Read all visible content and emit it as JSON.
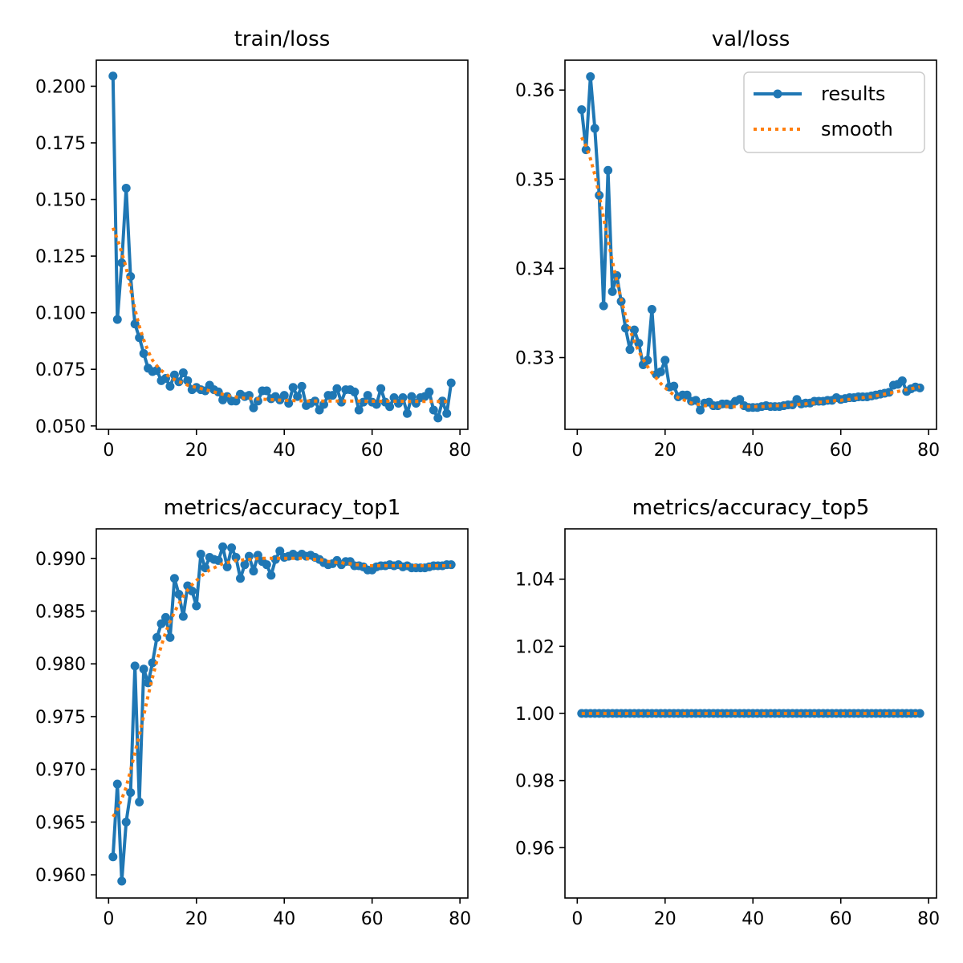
{
  "colors": {
    "results": "#1f77b4",
    "smooth": "#ff7f0e",
    "axes": "#000000",
    "background": "#ffffff"
  },
  "legend": {
    "placement": "upper-right",
    "shown_in": "val/loss",
    "entries": [
      "results",
      "smooth"
    ]
  },
  "chart_data": [
    {
      "type": "line",
      "title": "train/loss",
      "grid": false,
      "xlim": [
        -2.8,
        81.8
      ],
      "ylim": [
        0.0485,
        0.2115
      ],
      "xticks": [
        0,
        20,
        40,
        60,
        80
      ],
      "xtick_labels": [
        "0",
        "20",
        "40",
        "60",
        "80"
      ],
      "yticks": [
        0.05,
        0.075,
        0.1,
        0.125,
        0.15,
        0.175,
        0.2
      ],
      "ytick_labels": [
        "0.050",
        "0.075",
        "0.100",
        "0.125",
        "0.150",
        "0.175",
        "0.200"
      ],
      "x": [
        1,
        2,
        3,
        4,
        5,
        6,
        7,
        8,
        9,
        10,
        11,
        12,
        13,
        14,
        15,
        16,
        17,
        18,
        19,
        20,
        21,
        22,
        23,
        24,
        25,
        26,
        27,
        28,
        29,
        30,
        31,
        32,
        33,
        34,
        35,
        36,
        37,
        38,
        39,
        40,
        41,
        42,
        43,
        44,
        45,
        46,
        47,
        48,
        49,
        50,
        51,
        52,
        53,
        54,
        55,
        56,
        57,
        58,
        59,
        60,
        61,
        62,
        63,
        64,
        65,
        66,
        67,
        68,
        69,
        70,
        71,
        72,
        73,
        74,
        75,
        76,
        77,
        78
      ],
      "series": [
        {
          "name": "results",
          "style": "line-marker",
          "values": [
            0.2045,
            0.097,
            0.122,
            0.155,
            0.116,
            0.095,
            0.089,
            0.082,
            0.0755,
            0.074,
            0.0745,
            0.07,
            0.071,
            0.0675,
            0.0725,
            0.0695,
            0.0735,
            0.07,
            0.066,
            0.067,
            0.066,
            0.0655,
            0.068,
            0.066,
            0.065,
            0.0615,
            0.063,
            0.061,
            0.061,
            0.064,
            0.063,
            0.0635,
            0.058,
            0.061,
            0.0655,
            0.0655,
            0.062,
            0.063,
            0.0615,
            0.0635,
            0.06,
            0.067,
            0.063,
            0.0675,
            0.059,
            0.06,
            0.061,
            0.057,
            0.0595,
            0.0635,
            0.0635,
            0.0665,
            0.0605,
            0.066,
            0.066,
            0.065,
            0.057,
            0.0605,
            0.0635,
            0.0605,
            0.0595,
            0.0665,
            0.0605,
            0.0585,
            0.0625,
            0.06,
            0.0625,
            0.0555,
            0.063,
            0.06,
            0.0625,
            0.063,
            0.065,
            0.057,
            0.0535,
            0.061,
            0.0555,
            0.069
          ]
        },
        {
          "name": "smooth",
          "style": "dotted",
          "values": [
            0.1375,
            0.1325,
            0.1265,
            0.12,
            0.1105,
            0.1015,
            0.094,
            0.088,
            0.083,
            0.079,
            0.0765,
            0.0745,
            0.073,
            0.0715,
            0.0705,
            0.0695,
            0.069,
            0.068,
            0.0675,
            0.067,
            0.0665,
            0.066,
            0.0655,
            0.065,
            0.0645,
            0.064,
            0.0635,
            0.063,
            0.0628,
            0.0625,
            0.0623,
            0.0622,
            0.062,
            0.0619,
            0.0618,
            0.0617,
            0.0616,
            0.0615,
            0.0614,
            0.0613,
            0.0612,
            0.0612,
            0.0611,
            0.0611,
            0.061,
            0.061,
            0.061,
            0.061,
            0.061,
            0.061,
            0.061,
            0.061,
            0.061,
            0.061,
            0.061,
            0.061,
            0.061,
            0.0609,
            0.0609,
            0.0609,
            0.0609,
            0.0609,
            0.0609,
            0.0609,
            0.0609,
            0.0609,
            0.0609,
            0.0608,
            0.0608,
            0.0608,
            0.0608,
            0.0608,
            0.0608,
            0.0608,
            0.0608,
            0.0608,
            0.0608,
            0.0608
          ]
        }
      ]
    },
    {
      "type": "line",
      "title": "val/loss",
      "grid": false,
      "xlim": [
        -2.8,
        81.8
      ],
      "ylim": [
        0.32195,
        0.36335
      ],
      "xticks": [
        0,
        20,
        40,
        60,
        80
      ],
      "xtick_labels": [
        "0",
        "20",
        "40",
        "60",
        "80"
      ],
      "yticks": [
        0.33,
        0.34,
        0.35,
        0.36
      ],
      "ytick_labels": [
        "0.33",
        "0.34",
        "0.35",
        "0.36"
      ],
      "x": [
        1,
        2,
        3,
        4,
        5,
        6,
        7,
        8,
        9,
        10,
        11,
        12,
        13,
        14,
        15,
        16,
        17,
        18,
        19,
        20,
        21,
        22,
        23,
        24,
        25,
        26,
        27,
        28,
        29,
        30,
        31,
        32,
        33,
        34,
        35,
        36,
        37,
        38,
        39,
        40,
        41,
        42,
        43,
        44,
        45,
        46,
        47,
        48,
        49,
        50,
        51,
        52,
        53,
        54,
        55,
        56,
        57,
        58,
        59,
        60,
        61,
        62,
        63,
        64,
        65,
        66,
        67,
        68,
        69,
        70,
        71,
        72,
        73,
        74,
        75,
        76,
        77,
        78
      ],
      "series": [
        {
          "name": "results",
          "style": "line-marker",
          "values": [
            0.3578,
            0.3533,
            0.3615,
            0.3557,
            0.3482,
            0.3358,
            0.351,
            0.3374,
            0.3392,
            0.3363,
            0.3333,
            0.3309,
            0.3331,
            0.3316,
            0.3292,
            0.3297,
            0.3354,
            0.3281,
            0.3284,
            0.3297,
            0.3267,
            0.3268,
            0.3256,
            0.3258,
            0.3258,
            0.3251,
            0.3252,
            0.3241,
            0.3249,
            0.325,
            0.3246,
            0.3246,
            0.3248,
            0.3248,
            0.3247,
            0.3251,
            0.3253,
            0.3246,
            0.3244,
            0.3244,
            0.3244,
            0.3245,
            0.3246,
            0.3245,
            0.3245,
            0.3245,
            0.3246,
            0.3247,
            0.3247,
            0.3253,
            0.3248,
            0.3249,
            0.3249,
            0.3251,
            0.3251,
            0.3251,
            0.3252,
            0.3252,
            0.3255,
            0.3253,
            0.3254,
            0.3255,
            0.3255,
            0.3256,
            0.3256,
            0.3256,
            0.3257,
            0.3258,
            0.3259,
            0.326,
            0.3261,
            0.3269,
            0.327,
            0.3274,
            0.3262,
            0.3265,
            0.3267,
            0.3266
          ]
        },
        {
          "name": "smooth",
          "style": "dotted",
          "values": [
            0.3547,
            0.3537,
            0.3523,
            0.3505,
            0.3482,
            0.3456,
            0.3432,
            0.3408,
            0.3386,
            0.3365,
            0.3347,
            0.3331,
            0.3318,
            0.3307,
            0.3298,
            0.329,
            0.3283,
            0.3277,
            0.3271,
            0.3266,
            0.3262,
            0.3258,
            0.3255,
            0.3253,
            0.3251,
            0.3249,
            0.3248,
            0.3247,
            0.3246,
            0.3246,
            0.3245,
            0.3245,
            0.3245,
            0.3245,
            0.3245,
            0.3245,
            0.3245,
            0.3245,
            0.3245,
            0.3245,
            0.3245,
            0.3245,
            0.3245,
            0.3246,
            0.3246,
            0.3246,
            0.3246,
            0.3247,
            0.3247,
            0.3247,
            0.3248,
            0.3248,
            0.3249,
            0.3249,
            0.325,
            0.325,
            0.3251,
            0.3251,
            0.3252,
            0.3252,
            0.3253,
            0.3253,
            0.3254,
            0.3255,
            0.3255,
            0.3256,
            0.3256,
            0.3257,
            0.3258,
            0.3259,
            0.326,
            0.3261,
            0.3262,
            0.3263,
            0.3264,
            0.3265,
            0.3266,
            0.3267
          ]
        }
      ]
    },
    {
      "type": "line",
      "title": "metrics/accuracy_top1",
      "grid": false,
      "xlim": [
        -2.8,
        81.8
      ],
      "ylim": [
        0.9578,
        0.9928
      ],
      "xticks": [
        0,
        20,
        40,
        60,
        80
      ],
      "xtick_labels": [
        "0",
        "20",
        "40",
        "60",
        "80"
      ],
      "yticks": [
        0.96,
        0.965,
        0.97,
        0.975,
        0.98,
        0.985,
        0.99
      ],
      "ytick_labels": [
        "0.960",
        "0.965",
        "0.970",
        "0.975",
        "0.980",
        "0.985",
        "0.990"
      ],
      "x": [
        1,
        2,
        3,
        4,
        5,
        6,
        7,
        8,
        9,
        10,
        11,
        12,
        13,
        14,
        15,
        16,
        17,
        18,
        19,
        20,
        21,
        22,
        23,
        24,
        25,
        26,
        27,
        28,
        29,
        30,
        31,
        32,
        33,
        34,
        35,
        36,
        37,
        38,
        39,
        40,
        41,
        42,
        43,
        44,
        45,
        46,
        47,
        48,
        49,
        50,
        51,
        52,
        53,
        54,
        55,
        56,
        57,
        58,
        59,
        60,
        61,
        62,
        63,
        64,
        65,
        66,
        67,
        68,
        69,
        70,
        71,
        72,
        73,
        74,
        75,
        76,
        77,
        78
      ],
      "series": [
        {
          "name": "results",
          "style": "line-marker",
          "values": [
            0.9617,
            0.9686,
            0.9594,
            0.965,
            0.9678,
            0.9798,
            0.9669,
            0.9795,
            0.9782,
            0.9801,
            0.9825,
            0.9838,
            0.9844,
            0.9825,
            0.9881,
            0.9866,
            0.9845,
            0.9874,
            0.9869,
            0.9855,
            0.9904,
            0.9891,
            0.9901,
            0.9899,
            0.9898,
            0.9911,
            0.9892,
            0.991,
            0.9901,
            0.9881,
            0.9894,
            0.9902,
            0.9888,
            0.9903,
            0.9897,
            0.9894,
            0.9884,
            0.9899,
            0.9907,
            0.9901,
            0.9902,
            0.9904,
            0.9902,
            0.9904,
            0.9902,
            0.9903,
            0.9901,
            0.9899,
            0.9896,
            0.9894,
            0.9895,
            0.9898,
            0.9894,
            0.9897,
            0.9897,
            0.9893,
            0.9893,
            0.9892,
            0.9889,
            0.9889,
            0.9892,
            0.9893,
            0.9893,
            0.9894,
            0.9893,
            0.9894,
            0.9892,
            0.9893,
            0.9891,
            0.9891,
            0.9891,
            0.9891,
            0.9892,
            0.9893,
            0.9893,
            0.9893,
            0.9894,
            0.9894
          ]
        },
        {
          "name": "smooth",
          "style": "dotted",
          "values": [
            0.9655,
            0.9662,
            0.9672,
            0.9683,
            0.9699,
            0.9716,
            0.9732,
            0.9751,
            0.977,
            0.9787,
            0.9803,
            0.9817,
            0.983,
            0.984,
            0.9849,
            0.9857,
            0.9864,
            0.987,
            0.9875,
            0.9879,
            0.9883,
            0.9886,
            0.9889,
            0.9891,
            0.9893,
            0.9895,
            0.9896,
            0.9897,
            0.9898,
            0.9898,
            0.9899,
            0.9899,
            0.9899,
            0.99,
            0.99,
            0.99,
            0.99,
            0.99,
            0.99,
            0.99,
            0.99,
            0.99,
            0.99,
            0.99,
            0.99,
            0.9899,
            0.9899,
            0.9899,
            0.9898,
            0.9897,
            0.9897,
            0.9896,
            0.9896,
            0.9895,
            0.9895,
            0.9894,
            0.9894,
            0.9893,
            0.9893,
            0.9893,
            0.9893,
            0.9893,
            0.9893,
            0.9893,
            0.9893,
            0.9893,
            0.9893,
            0.9893,
            0.9893,
            0.9893,
            0.9893,
            0.9893,
            0.9893,
            0.9893,
            0.9893,
            0.9893,
            0.9893,
            0.9893
          ]
        }
      ]
    },
    {
      "type": "line",
      "title": "metrics/accuracy_top5",
      "grid": false,
      "xlim": [
        -2.8,
        81.8
      ],
      "ylim": [
        0.945,
        1.055
      ],
      "xticks": [
        0,
        20,
        40,
        60,
        80
      ],
      "xtick_labels": [
        "0",
        "20",
        "40",
        "60",
        "80"
      ],
      "yticks": [
        0.96,
        0.98,
        1.0,
        1.02,
        1.04
      ],
      "ytick_labels": [
        "0.96",
        "0.98",
        "1.00",
        "1.02",
        "1.04"
      ],
      "x": [
        1,
        2,
        3,
        4,
        5,
        6,
        7,
        8,
        9,
        10,
        11,
        12,
        13,
        14,
        15,
        16,
        17,
        18,
        19,
        20,
        21,
        22,
        23,
        24,
        25,
        26,
        27,
        28,
        29,
        30,
        31,
        32,
        33,
        34,
        35,
        36,
        37,
        38,
        39,
        40,
        41,
        42,
        43,
        44,
        45,
        46,
        47,
        48,
        49,
        50,
        51,
        52,
        53,
        54,
        55,
        56,
        57,
        58,
        59,
        60,
        61,
        62,
        63,
        64,
        65,
        66,
        67,
        68,
        69,
        70,
        71,
        72,
        73,
        74,
        75,
        76,
        77,
        78
      ],
      "series": [
        {
          "name": "results",
          "style": "line-marker",
          "values": [
            1,
            1,
            1,
            1,
            1,
            1,
            1,
            1,
            1,
            1,
            1,
            1,
            1,
            1,
            1,
            1,
            1,
            1,
            1,
            1,
            1,
            1,
            1,
            1,
            1,
            1,
            1,
            1,
            1,
            1,
            1,
            1,
            1,
            1,
            1,
            1,
            1,
            1,
            1,
            1,
            1,
            1,
            1,
            1,
            1,
            1,
            1,
            1,
            1,
            1,
            1,
            1,
            1,
            1,
            1,
            1,
            1,
            1,
            1,
            1,
            1,
            1,
            1,
            1,
            1,
            1,
            1,
            1,
            1,
            1,
            1,
            1,
            1,
            1,
            1,
            1,
            1,
            1
          ]
        },
        {
          "name": "smooth",
          "style": "dotted",
          "values": [
            1,
            1,
            1,
            1,
            1,
            1,
            1,
            1,
            1,
            1,
            1,
            1,
            1,
            1,
            1,
            1,
            1,
            1,
            1,
            1,
            1,
            1,
            1,
            1,
            1,
            1,
            1,
            1,
            1,
            1,
            1,
            1,
            1,
            1,
            1,
            1,
            1,
            1,
            1,
            1,
            1,
            1,
            1,
            1,
            1,
            1,
            1,
            1,
            1,
            1,
            1,
            1,
            1,
            1,
            1,
            1,
            1,
            1,
            1,
            1,
            1,
            1,
            1,
            1,
            1,
            1,
            1,
            1,
            1,
            1,
            1,
            1,
            1,
            1,
            1,
            1,
            1,
            1
          ]
        }
      ]
    }
  ]
}
